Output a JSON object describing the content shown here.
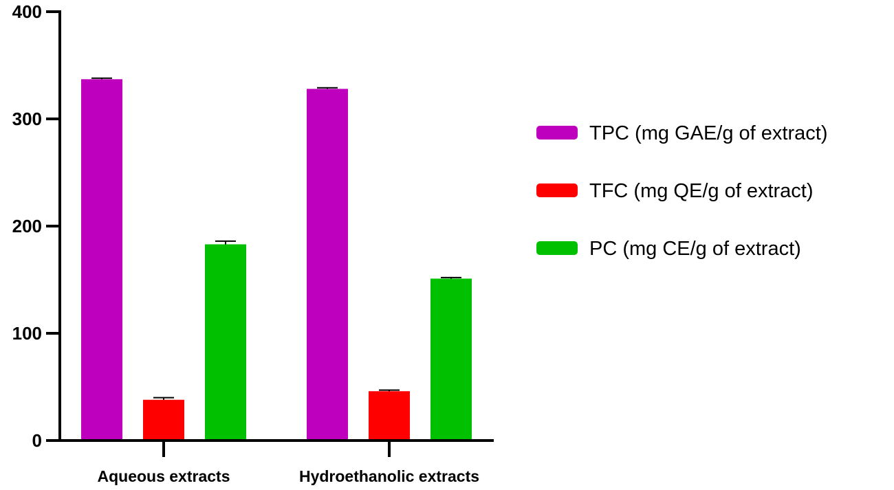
{
  "chart_data": {
    "type": "bar",
    "title": "",
    "xlabel": "",
    "ylabel": "",
    "ylim": [
      0,
      400
    ],
    "yticks": [
      0,
      100,
      200,
      300,
      400
    ],
    "categories": [
      "Aqueous extracts",
      "Hydroethanolic extracts"
    ],
    "series": [
      {
        "name": "TPC (mg GAE/g of extract)",
        "color": "#BE00BE",
        "values": [
          337,
          328
        ],
        "errors": [
          1,
          1
        ]
      },
      {
        "name": "TFC (mg QE/g of extract)",
        "color": "#FF0000",
        "values": [
          38,
          46
        ],
        "errors": [
          2,
          1
        ]
      },
      {
        "name": "PC (mg CE/g of extract)",
        "color": "#00C000",
        "values": [
          183,
          151
        ],
        "errors": [
          3,
          1
        ]
      }
    ],
    "legend_position": "right",
    "grid": false
  }
}
